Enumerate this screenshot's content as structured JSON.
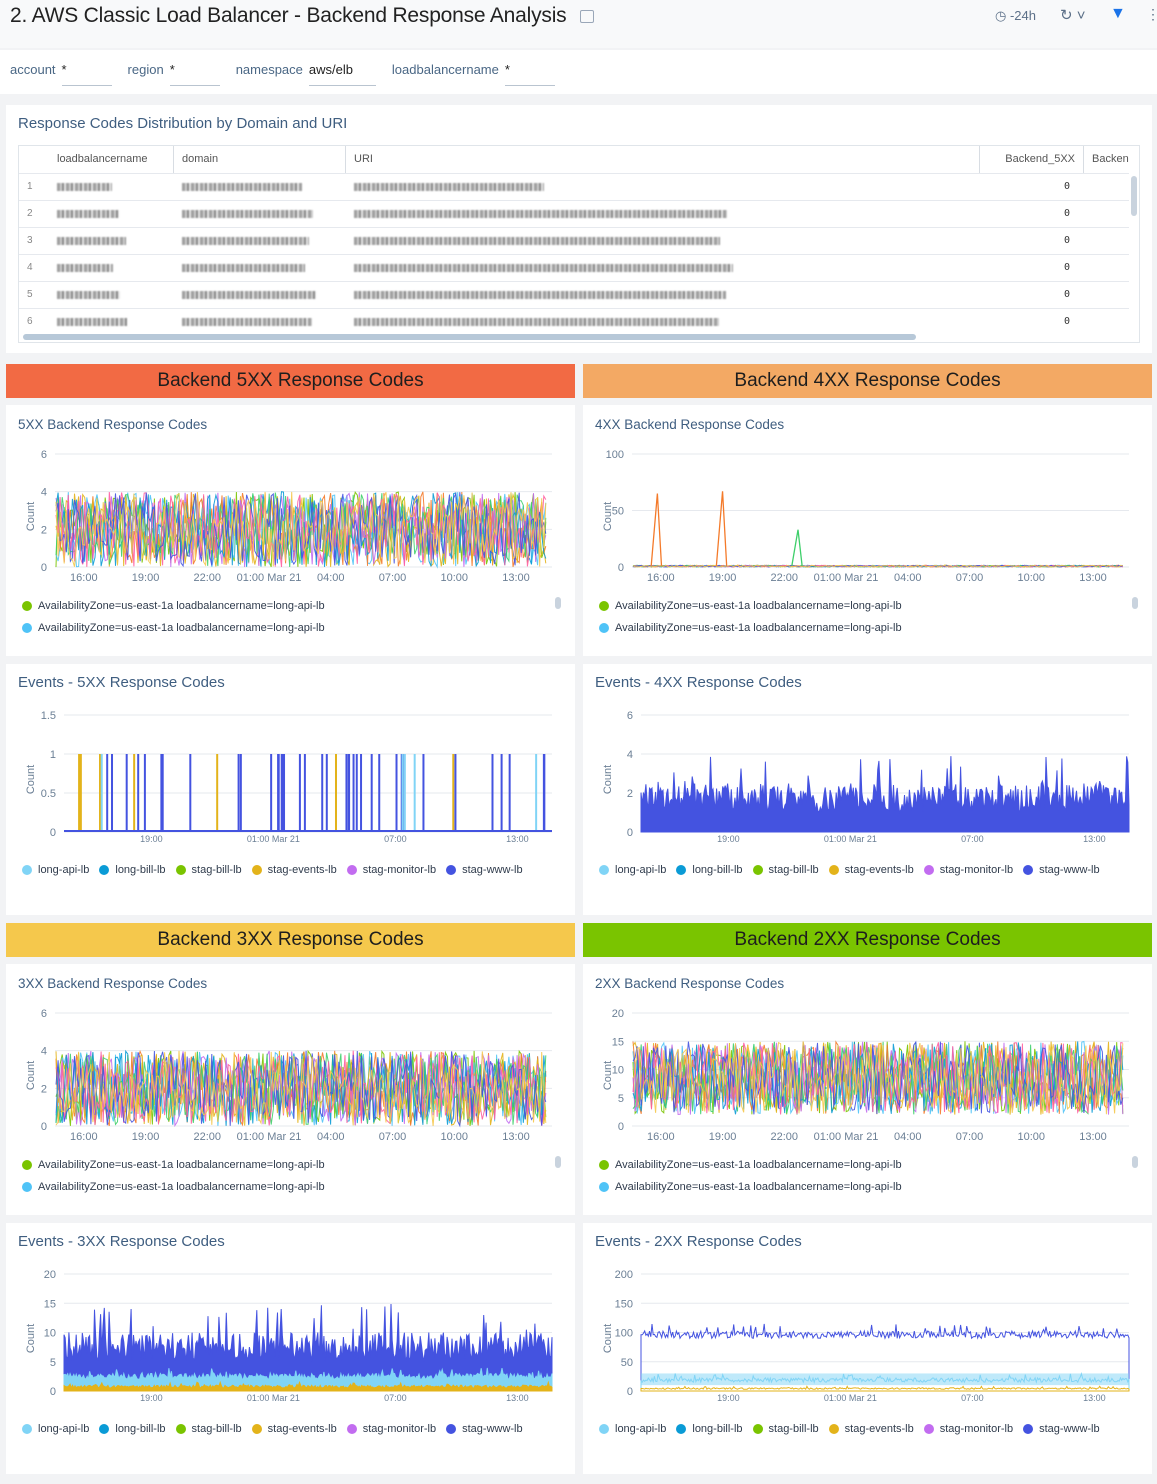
{
  "header": {
    "title": "2. AWS Classic Load Balancer - Backend Response Analysis",
    "time_range": "-24h",
    "icons": [
      "share-icon",
      "clock-icon",
      "refresh-icon",
      "filter-icon",
      "more-icon"
    ]
  },
  "filters": [
    {
      "label": "account",
      "value": "*"
    },
    {
      "label": "region",
      "value": "*"
    },
    {
      "label": "namespace",
      "value": "aws/elb"
    },
    {
      "label": "loadbalancername",
      "value": "*"
    }
  ],
  "table_panel": {
    "title": "Response Codes Distribution by Domain and URI",
    "columns": [
      "loadbalancername",
      "domain",
      "URI",
      "Backend_5XX",
      "Backen"
    ],
    "rows": [
      {
        "n": "1",
        "backend_5xx": "0"
      },
      {
        "n": "2",
        "backend_5xx": "0"
      },
      {
        "n": "3",
        "backend_5xx": "0"
      },
      {
        "n": "4",
        "backend_5xx": "0"
      },
      {
        "n": "5",
        "backend_5xx": "0"
      },
      {
        "n": "6",
        "backend_5xx": "0"
      }
    ]
  },
  "sections": [
    {
      "title": "Backend 5XX Response Codes",
      "color": "#f26a44"
    },
    {
      "title": "Backend 4XX Response Codes",
      "color": "#f3a964"
    },
    {
      "title": "Backend 3XX Response Codes",
      "color": "#f5c84c"
    },
    {
      "title": "Backend 2XX Response Codes",
      "color": "#7ac400"
    }
  ],
  "lb_colors": {
    "long-api-lb": "#80d4f6",
    "long-bill-lb": "#0a9bd6",
    "stag-bill-lb": "#7ac400",
    "stag-events-lb": "#e3b31a",
    "stag-monitor-lb": "#c26cf0",
    "stag-www-lb": "#4453e0"
  },
  "chart_data": [
    {
      "id": "c5xx",
      "title": "5XX Backend Response Codes",
      "type": "line",
      "ylabel": "Count",
      "ylim": [
        0,
        6
      ],
      "yticks": [
        0,
        2,
        4,
        6
      ],
      "xticks": [
        "16:00",
        "19:00",
        "22:00",
        "01:00 Mar 21",
        "04:00",
        "07:00",
        "10:00",
        "13:00"
      ],
      "series_range": [
        0,
        4
      ],
      "legend": [
        {
          "name": "AvailabilityZone=us-east-1a loadbalancername=long-api-lb",
          "color": "#7ac400"
        },
        {
          "name": "AvailabilityZone=us-east-1a loadbalancername=long-api-lb",
          "color": "#4fc3f7"
        }
      ]
    },
    {
      "id": "c4xx",
      "title": "4XX Backend Response Codes",
      "type": "line",
      "ylabel": "Count",
      "ylim": [
        0,
        100
      ],
      "yticks": [
        0,
        50,
        100
      ],
      "xticks": [
        "16:00",
        "19:00",
        "22:00",
        "01:00 Mar 21",
        "04:00",
        "07:00",
        "10:00",
        "13:00"
      ],
      "series_range": [
        0,
        3
      ],
      "spikes": [
        {
          "time": "15:50",
          "value": 65,
          "color": "#f47a2a"
        },
        {
          "time": "19:00",
          "value": 67,
          "color": "#f47a2a"
        },
        {
          "time": "22:40",
          "value": 33,
          "color": "#3ecf6a"
        }
      ],
      "legend": [
        {
          "name": "AvailabilityZone=us-east-1a loadbalancername=long-api-lb",
          "color": "#7ac400"
        },
        {
          "name": "AvailabilityZone=us-east-1a loadbalancername=long-api-lb",
          "color": "#4fc3f7"
        }
      ]
    },
    {
      "id": "e5xx",
      "title": "Events - 5XX Response Codes",
      "type": "bar",
      "ylabel": "Count",
      "ylim": [
        0,
        1.5
      ],
      "yticks": [
        0,
        0.5,
        1,
        1.5
      ],
      "xticks": [
        "19:00",
        "01:00 Mar 21",
        "07:00",
        "13:00"
      ],
      "event_value": 1,
      "legend": [
        "long-api-lb",
        "long-bill-lb",
        "stag-bill-lb",
        "stag-events-lb",
        "stag-monitor-lb",
        "stag-www-lb"
      ]
    },
    {
      "id": "e4xx",
      "title": "Events - 4XX Response Codes",
      "type": "area",
      "ylabel": "Count",
      "ylim": [
        0,
        6
      ],
      "yticks": [
        0,
        2,
        4,
        6
      ],
      "xticks": [
        "19:00",
        "01:00 Mar 21",
        "07:00",
        "13:00"
      ],
      "typical": {
        "stag-www-lb": [
          1,
          4
        ]
      },
      "legend": [
        "long-api-lb",
        "long-bill-lb",
        "stag-bill-lb",
        "stag-events-lb",
        "stag-monitor-lb",
        "stag-www-lb"
      ]
    },
    {
      "id": "c3xx",
      "title": "3XX Backend Response Codes",
      "type": "line",
      "ylabel": "Count",
      "ylim": [
        0,
        6
      ],
      "yticks": [
        0,
        2,
        4,
        6
      ],
      "xticks": [
        "16:00",
        "19:00",
        "22:00",
        "01:00 Mar 21",
        "04:00",
        "07:00",
        "10:00",
        "13:00"
      ],
      "series_range": [
        0,
        4
      ],
      "legend": [
        {
          "name": "AvailabilityZone=us-east-1a loadbalancername=long-api-lb",
          "color": "#7ac400"
        },
        {
          "name": "AvailabilityZone=us-east-1a loadbalancername=long-api-lb",
          "color": "#4fc3f7"
        }
      ]
    },
    {
      "id": "c2xx",
      "title": "2XX Backend Response Codes",
      "type": "line",
      "ylabel": "Count",
      "ylim": [
        0,
        20
      ],
      "yticks": [
        0,
        5,
        10,
        15,
        20
      ],
      "xticks": [
        "16:00",
        "19:00",
        "22:00",
        "01:00 Mar 21",
        "04:00",
        "07:00",
        "10:00",
        "13:00"
      ],
      "series_range": [
        2,
        15
      ],
      "legend": [
        {
          "name": "AvailabilityZone=us-east-1a loadbalancername=long-api-lb",
          "color": "#7ac400"
        },
        {
          "name": "AvailabilityZone=us-east-1a loadbalancername=long-api-lb",
          "color": "#4fc3f7"
        }
      ]
    },
    {
      "id": "e3xx",
      "title": "Events - 3XX Response Codes",
      "type": "area",
      "ylabel": "Count",
      "ylim": [
        0,
        20
      ],
      "yticks": [
        0,
        5,
        10,
        15,
        20
      ],
      "xticks": [
        "19:00",
        "01:00 Mar 21",
        "07:00",
        "13:00"
      ],
      "typical": {
        "stag-www-lb": [
          5,
          15
        ],
        "long-api-lb": [
          2,
          4
        ],
        "stag-events-lb": [
          0.5,
          1.5
        ]
      },
      "legend": [
        "long-api-lb",
        "long-bill-lb",
        "stag-bill-lb",
        "stag-events-lb",
        "stag-monitor-lb",
        "stag-www-lb"
      ]
    },
    {
      "id": "e2xx",
      "title": "Events - 2XX Response Codes",
      "type": "area",
      "ylabel": "Count",
      "ylim": [
        0,
        200
      ],
      "yticks": [
        0,
        50,
        100,
        150,
        200
      ],
      "xticks": [
        "19:00",
        "01:00 Mar 21",
        "07:00",
        "13:00"
      ],
      "typical": {
        "stag-www-lb": [
          90,
          115
        ],
        "long-api-lb": [
          15,
          30
        ],
        "stag-events-lb": [
          3,
          8
        ]
      },
      "legend": [
        "long-api-lb",
        "long-bill-lb",
        "stag-bill-lb",
        "stag-events-lb",
        "stag-monitor-lb",
        "stag-www-lb"
      ]
    }
  ]
}
